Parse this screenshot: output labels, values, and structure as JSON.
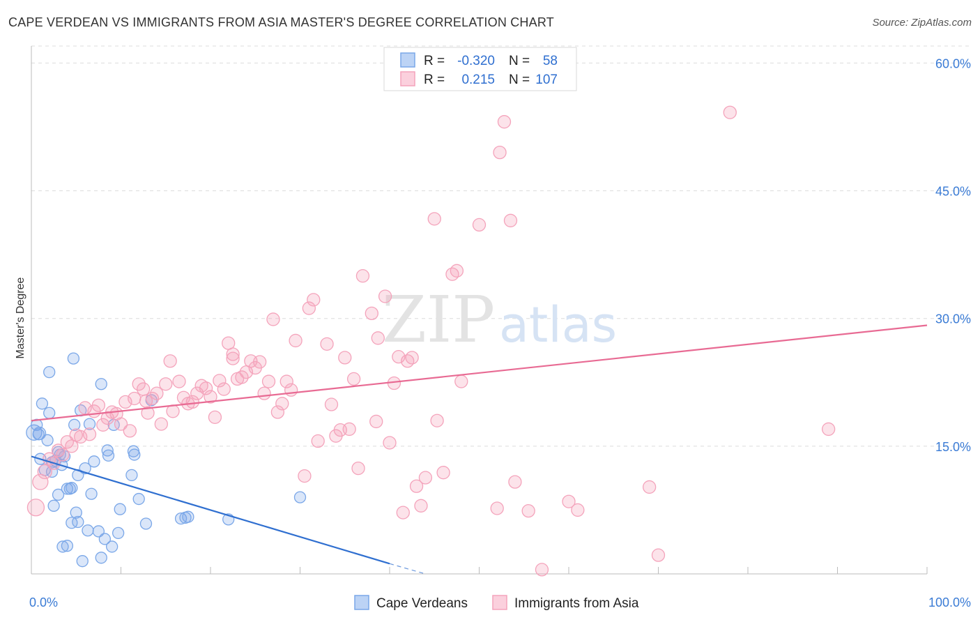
{
  "title": "CAPE VERDEAN VS IMMIGRANTS FROM ASIA MASTER'S DEGREE CORRELATION CHART",
  "source": "Source: ZipAtlas.com",
  "watermark": {
    "zip": "ZIP",
    "atlas": "atlas"
  },
  "chart_data": {
    "type": "scatter",
    "ylabel": "Master's Degree",
    "xlim": [
      0,
      100
    ],
    "ylim": [
      0,
      62
    ],
    "x_tick_labels": [
      {
        "value": 0,
        "label": "0.0%"
      },
      {
        "value": 100,
        "label": "100.0%"
      }
    ],
    "x_minor_ticks": [
      0,
      10,
      20,
      30,
      40,
      50,
      60,
      70,
      80,
      90,
      100
    ],
    "y_ticks": [
      {
        "value": 15,
        "label": "15.0%"
      },
      {
        "value": 30,
        "label": "30.0%"
      },
      {
        "value": 45,
        "label": "45.0%"
      },
      {
        "value": 60,
        "label": "60.0%"
      }
    ],
    "grid": true,
    "legend": {
      "placement": "top-center",
      "rows": [
        {
          "r_label": "R =",
          "r_value": "-0.320",
          "n_label": "N =",
          "n_value": "58"
        },
        {
          "r_label": "R =",
          "r_value": "0.215",
          "n_label": "N =",
          "n_value": "107"
        }
      ]
    },
    "series": [
      {
        "name": "Cape Verdeans",
        "color": "#7aa7e8",
        "line_color": "#2f6fd0",
        "trend": {
          "x0": 0,
          "y0": 13.8,
          "x1": 40,
          "y1": 1.2,
          "dash_to": 44,
          "dash_y": 0.0
        },
        "points": [
          [
            0.3,
            16.6
          ],
          [
            0.6,
            17.5
          ],
          [
            0.8,
            16.4
          ],
          [
            1.0,
            13.5
          ],
          [
            1.2,
            20.0
          ],
          [
            1.5,
            12.2
          ],
          [
            1.8,
            15.7
          ],
          [
            2.0,
            18.9
          ],
          [
            2.0,
            23.7
          ],
          [
            2.3,
            13.1
          ],
          [
            2.5,
            8.0
          ],
          [
            2.7,
            13.3
          ],
          [
            3.0,
            14.3
          ],
          [
            3.0,
            9.3
          ],
          [
            3.2,
            14.0
          ],
          [
            3.4,
            12.8
          ],
          [
            3.5,
            3.2
          ],
          [
            3.7,
            13.8
          ],
          [
            4.0,
            3.3
          ],
          [
            4.0,
            10.0
          ],
          [
            4.3,
            10.0
          ],
          [
            4.5,
            6.0
          ],
          [
            4.5,
            10.1
          ],
          [
            4.7,
            25.3
          ],
          [
            4.8,
            17.5
          ],
          [
            5.0,
            7.2
          ],
          [
            5.2,
            11.6
          ],
          [
            5.2,
            6.1
          ],
          [
            5.5,
            19.2
          ],
          [
            5.7,
            1.5
          ],
          [
            6.0,
            12.4
          ],
          [
            6.3,
            5.1
          ],
          [
            6.5,
            17.6
          ],
          [
            6.7,
            9.4
          ],
          [
            7.0,
            13.2
          ],
          [
            7.5,
            5.0
          ],
          [
            7.8,
            22.3
          ],
          [
            7.8,
            1.9
          ],
          [
            8.2,
            4.1
          ],
          [
            8.5,
            14.5
          ],
          [
            8.6,
            13.9
          ],
          [
            9.0,
            3.2
          ],
          [
            9.2,
            17.5
          ],
          [
            9.7,
            4.8
          ],
          [
            9.9,
            7.6
          ],
          [
            11.2,
            11.6
          ],
          [
            11.4,
            14.4
          ],
          [
            11.5,
            14.0
          ],
          [
            12.0,
            8.8
          ],
          [
            12.8,
            5.9
          ],
          [
            13.4,
            20.4
          ],
          [
            16.7,
            6.5
          ],
          [
            17.2,
            6.6
          ],
          [
            17.5,
            6.7
          ],
          [
            22.0,
            6.4
          ],
          [
            30.0,
            9.0
          ],
          [
            0.9,
            16.5
          ],
          [
            2.3,
            12.0
          ]
        ],
        "sizes": [
          22,
          16,
          16,
          16,
          16,
          16,
          16,
          16,
          16,
          16,
          16,
          16,
          16,
          16,
          16,
          16,
          16,
          16,
          16,
          16,
          16,
          16,
          16,
          16,
          16,
          16,
          16,
          16,
          16,
          16,
          16,
          16,
          16,
          16,
          16,
          16,
          16,
          16,
          16,
          16,
          16,
          16,
          16,
          16,
          16,
          16,
          16,
          16,
          16,
          16,
          16,
          16,
          16,
          16,
          16,
          16,
          18,
          16
        ]
      },
      {
        "name": "Immigrants from Asia",
        "color": "#f4a3bb",
        "line_color": "#e86a93",
        "trend": {
          "x0": 0,
          "y0": 18.0,
          "x1": 100,
          "y1": 29.2
        },
        "points": [
          [
            0.5,
            7.8
          ],
          [
            1.0,
            10.8
          ],
          [
            1.5,
            12.0
          ],
          [
            2.0,
            13.5
          ],
          [
            2.5,
            13.0
          ],
          [
            3.0,
            14.5
          ],
          [
            3.5,
            14.0
          ],
          [
            4.0,
            15.5
          ],
          [
            4.5,
            15.0
          ],
          [
            5.0,
            16.3
          ],
          [
            5.5,
            16.1
          ],
          [
            6.0,
            19.5
          ],
          [
            6.5,
            16.4
          ],
          [
            7.0,
            19.1
          ],
          [
            7.5,
            19.8
          ],
          [
            8.0,
            17.5
          ],
          [
            8.5,
            18.3
          ],
          [
            9.0,
            19.0
          ],
          [
            9.5,
            18.8
          ],
          [
            10.0,
            17.6
          ],
          [
            10.5,
            20.2
          ],
          [
            11.0,
            16.8
          ],
          [
            11.5,
            20.6
          ],
          [
            12.0,
            22.3
          ],
          [
            12.5,
            21.7
          ],
          [
            12.8,
            20.3
          ],
          [
            13.0,
            18.9
          ],
          [
            13.5,
            20.6
          ],
          [
            14.0,
            21.2
          ],
          [
            14.5,
            17.6
          ],
          [
            15.0,
            22.3
          ],
          [
            15.5,
            25.0
          ],
          [
            15.8,
            19.1
          ],
          [
            16.5,
            22.6
          ],
          [
            17.0,
            20.7
          ],
          [
            17.5,
            20.0
          ],
          [
            18.0,
            20.2
          ],
          [
            18.5,
            21.2
          ],
          [
            19.0,
            22.1
          ],
          [
            19.5,
            21.8
          ],
          [
            20.0,
            20.8
          ],
          [
            20.5,
            18.4
          ],
          [
            21.0,
            22.7
          ],
          [
            21.5,
            21.7
          ],
          [
            22.0,
            27.1
          ],
          [
            22.5,
            25.3
          ],
          [
            23.0,
            22.9
          ],
          [
            23.5,
            23.1
          ],
          [
            24.0,
            23.7
          ],
          [
            24.5,
            25.0
          ],
          [
            25.0,
            24.2
          ],
          [
            25.5,
            24.9
          ],
          [
            26.0,
            21.2
          ],
          [
            26.5,
            22.6
          ],
          [
            27.0,
            29.9
          ],
          [
            27.5,
            19.0
          ],
          [
            28.0,
            20.0
          ],
          [
            28.5,
            22.6
          ],
          [
            29.0,
            21.6
          ],
          [
            29.5,
            27.4
          ],
          [
            30.5,
            11.5
          ],
          [
            31.0,
            31.2
          ],
          [
            31.5,
            32.2
          ],
          [
            32.0,
            15.6
          ],
          [
            33.0,
            27.0
          ],
          [
            33.5,
            19.9
          ],
          [
            34.0,
            16.2
          ],
          [
            34.5,
            16.9
          ],
          [
            35.0,
            25.4
          ],
          [
            35.5,
            17.0
          ],
          [
            36.0,
            22.9
          ],
          [
            36.5,
            12.4
          ],
          [
            37.0,
            35.0
          ],
          [
            38.0,
            30.6
          ],
          [
            38.5,
            17.9
          ],
          [
            38.7,
            27.7
          ],
          [
            39.5,
            32.6
          ],
          [
            40.0,
            15.4
          ],
          [
            40.5,
            22.4
          ],
          [
            41.0,
            25.5
          ],
          [
            41.5,
            7.2
          ],
          [
            42.0,
            25.0
          ],
          [
            42.5,
            25.4
          ],
          [
            43.0,
            10.3
          ],
          [
            43.5,
            8.0
          ],
          [
            44.0,
            11.3
          ],
          [
            45.0,
            41.7
          ],
          [
            45.3,
            18.0
          ],
          [
            46.0,
            11.9
          ],
          [
            47.0,
            35.2
          ],
          [
            47.5,
            35.6
          ],
          [
            48.0,
            22.6
          ],
          [
            50.0,
            41.0
          ],
          [
            52.0,
            7.7
          ],
          [
            52.3,
            49.5
          ],
          [
            52.8,
            53.1
          ],
          [
            53.5,
            41.5
          ],
          [
            54.0,
            10.8
          ],
          [
            55.5,
            7.4
          ],
          [
            60.0,
            8.5
          ],
          [
            61.0,
            7.5
          ],
          [
            69.0,
            10.2
          ],
          [
            70.0,
            2.2
          ],
          [
            78.0,
            54.2
          ],
          [
            89.0,
            17.0
          ],
          [
            57.0,
            0.5
          ],
          [
            22.5,
            25.8
          ]
        ],
        "sizes": [
          24,
          22,
          20,
          18,
          18,
          18,
          18,
          18,
          18,
          18,
          18,
          18,
          18,
          18,
          18,
          18,
          18,
          18,
          18,
          18,
          18,
          18,
          18,
          18,
          18,
          18,
          18,
          18,
          18,
          18,
          18,
          18,
          18,
          18,
          18,
          18,
          18,
          18,
          18,
          18,
          18,
          18,
          18,
          18,
          18,
          18,
          18,
          18,
          18,
          18,
          18,
          18,
          18,
          18,
          18,
          18,
          18,
          18,
          18,
          18,
          18,
          18,
          18,
          18,
          18,
          18,
          18,
          18,
          18,
          18,
          18,
          18,
          18,
          18,
          18,
          18,
          18,
          18,
          18,
          18,
          18,
          18,
          18,
          18,
          18,
          18,
          18,
          18,
          18,
          18,
          18,
          18,
          18,
          18,
          18,
          18,
          18,
          18,
          18,
          18,
          18,
          18,
          18,
          18,
          18,
          18,
          18
        ]
      }
    ]
  }
}
